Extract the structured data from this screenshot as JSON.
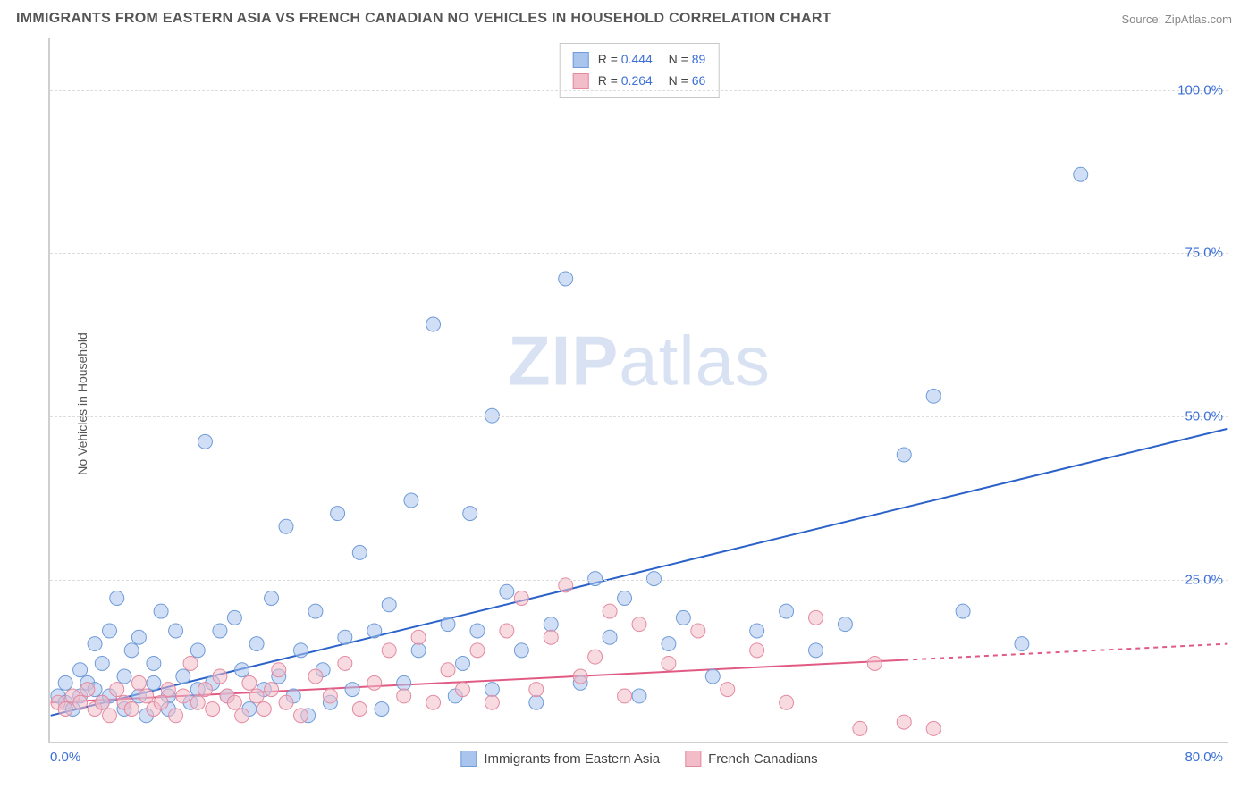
{
  "header": {
    "title": "IMMIGRANTS FROM EASTERN ASIA VS FRENCH CANADIAN NO VEHICLES IN HOUSEHOLD CORRELATION CHART",
    "source": "Source: ZipAtlas.com"
  },
  "ylabel": "No Vehicles in Household",
  "watermark_a": "ZIP",
  "watermark_b": "atlas",
  "chart": {
    "type": "scatter",
    "xlim": [
      0,
      80
    ],
    "ylim": [
      0,
      108
    ],
    "xtick_left": "0.0%",
    "xtick_right": "80.0%",
    "yticks": [
      {
        "v": 25,
        "label": "25.0%"
      },
      {
        "v": 50,
        "label": "50.0%"
      },
      {
        "v": 75,
        "label": "75.0%"
      },
      {
        "v": 100,
        "label": "100.0%"
      }
    ],
    "grid_color": "#dddddd",
    "axis_color": "#cfcfcf",
    "tick_color": "#3b6fd6",
    "background_color": "#ffffff",
    "marker_radius": 8,
    "marker_opacity": 0.55,
    "line_width": 2,
    "series": [
      {
        "name": "Immigrants from Eastern Asia",
        "color_fill": "#a9c5ed",
        "color_stroke": "#6f9bd8",
        "line_color": "#2b62c9",
        "R": "0.444",
        "N": "89",
        "trend": {
          "x0": 0,
          "y0": 4,
          "x1": 80,
          "y1": 48,
          "dash_from": null
        },
        "points": [
          [
            0.5,
            7
          ],
          [
            1,
            9
          ],
          [
            1,
            6
          ],
          [
            1.5,
            5
          ],
          [
            2,
            7
          ],
          [
            2,
            11
          ],
          [
            2.5,
            9
          ],
          [
            3,
            8
          ],
          [
            3,
            15
          ],
          [
            3.5,
            6
          ],
          [
            3.5,
            12
          ],
          [
            4,
            7
          ],
          [
            4,
            17
          ],
          [
            4.5,
            22
          ],
          [
            5,
            10
          ],
          [
            5,
            5
          ],
          [
            5.5,
            14
          ],
          [
            6,
            7
          ],
          [
            6,
            16
          ],
          [
            6.5,
            4
          ],
          [
            7,
            9
          ],
          [
            7,
            12
          ],
          [
            7.5,
            20
          ],
          [
            8,
            7
          ],
          [
            8,
            5
          ],
          [
            8.5,
            17
          ],
          [
            9,
            10
          ],
          [
            9.5,
            6
          ],
          [
            10,
            14
          ],
          [
            10,
            8
          ],
          [
            10.5,
            46
          ],
          [
            11,
            9
          ],
          [
            11.5,
            17
          ],
          [
            12,
            7
          ],
          [
            12.5,
            19
          ],
          [
            13,
            11
          ],
          [
            13.5,
            5
          ],
          [
            14,
            15
          ],
          [
            14.5,
            8
          ],
          [
            15,
            22
          ],
          [
            15.5,
            10
          ],
          [
            16,
            33
          ],
          [
            16.5,
            7
          ],
          [
            17,
            14
          ],
          [
            17.5,
            4
          ],
          [
            18,
            20
          ],
          [
            18.5,
            11
          ],
          [
            19,
            6
          ],
          [
            19.5,
            35
          ],
          [
            20,
            16
          ],
          [
            20.5,
            8
          ],
          [
            21,
            29
          ],
          [
            22,
            17
          ],
          [
            22.5,
            5
          ],
          [
            23,
            21
          ],
          [
            24,
            9
          ],
          [
            24.5,
            37
          ],
          [
            25,
            14
          ],
          [
            26,
            64
          ],
          [
            27,
            18
          ],
          [
            27.5,
            7
          ],
          [
            28,
            12
          ],
          [
            28.5,
            35
          ],
          [
            29,
            17
          ],
          [
            30,
            50
          ],
          [
            30,
            8
          ],
          [
            31,
            23
          ],
          [
            32,
            14
          ],
          [
            33,
            6
          ],
          [
            34,
            18
          ],
          [
            35,
            71
          ],
          [
            36,
            9
          ],
          [
            37,
            25
          ],
          [
            38,
            16
          ],
          [
            39,
            22
          ],
          [
            40,
            7
          ],
          [
            41,
            25
          ],
          [
            42,
            15
          ],
          [
            43,
            19
          ],
          [
            45,
            10
          ],
          [
            48,
            17
          ],
          [
            50,
            20
          ],
          [
            52,
            14
          ],
          [
            54,
            18
          ],
          [
            58,
            44
          ],
          [
            60,
            53
          ],
          [
            62,
            20
          ],
          [
            66,
            15
          ],
          [
            70,
            87
          ]
        ]
      },
      {
        "name": "French Canadians",
        "color_fill": "#f3bcc9",
        "color_stroke": "#e38aa0",
        "line_color": "#e05a84",
        "R": "0.264",
        "N": "66",
        "trend": {
          "x0": 0,
          "y0": 6,
          "x1": 80,
          "y1": 15,
          "dash_from": 58
        },
        "points": [
          [
            0.5,
            6
          ],
          [
            1,
            5
          ],
          [
            1.5,
            7
          ],
          [
            2,
            6
          ],
          [
            2.5,
            8
          ],
          [
            3,
            5
          ],
          [
            3.5,
            6
          ],
          [
            4,
            4
          ],
          [
            4.5,
            8
          ],
          [
            5,
            6
          ],
          [
            5.5,
            5
          ],
          [
            6,
            9
          ],
          [
            6.5,
            7
          ],
          [
            7,
            5
          ],
          [
            7.5,
            6
          ],
          [
            8,
            8
          ],
          [
            8.5,
            4
          ],
          [
            9,
            7
          ],
          [
            9.5,
            12
          ],
          [
            10,
            6
          ],
          [
            10.5,
            8
          ],
          [
            11,
            5
          ],
          [
            11.5,
            10
          ],
          [
            12,
            7
          ],
          [
            12.5,
            6
          ],
          [
            13,
            4
          ],
          [
            13.5,
            9
          ],
          [
            14,
            7
          ],
          [
            14.5,
            5
          ],
          [
            15,
            8
          ],
          [
            15.5,
            11
          ],
          [
            16,
            6
          ],
          [
            17,
            4
          ],
          [
            18,
            10
          ],
          [
            19,
            7
          ],
          [
            20,
            12
          ],
          [
            21,
            5
          ],
          [
            22,
            9
          ],
          [
            23,
            14
          ],
          [
            24,
            7
          ],
          [
            25,
            16
          ],
          [
            26,
            6
          ],
          [
            27,
            11
          ],
          [
            28,
            8
          ],
          [
            29,
            14
          ],
          [
            30,
            6
          ],
          [
            31,
            17
          ],
          [
            32,
            22
          ],
          [
            33,
            8
          ],
          [
            34,
            16
          ],
          [
            35,
            24
          ],
          [
            36,
            10
          ],
          [
            37,
            13
          ],
          [
            38,
            20
          ],
          [
            39,
            7
          ],
          [
            40,
            18
          ],
          [
            42,
            12
          ],
          [
            44,
            17
          ],
          [
            46,
            8
          ],
          [
            48,
            14
          ],
          [
            50,
            6
          ],
          [
            52,
            19
          ],
          [
            55,
            2
          ],
          [
            56,
            12
          ],
          [
            58,
            3
          ],
          [
            60,
            2
          ]
        ]
      }
    ]
  }
}
